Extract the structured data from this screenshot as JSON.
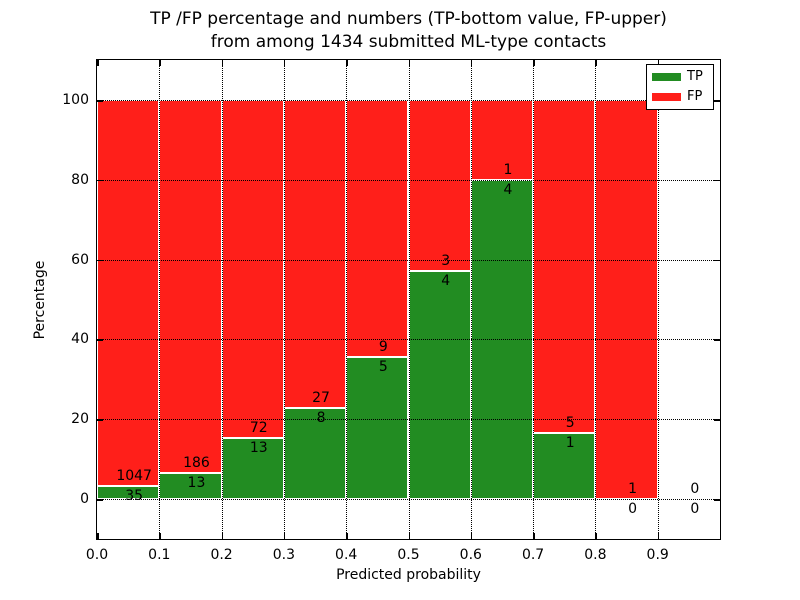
{
  "figure": {
    "title_line1": "TP /FP percentage and numbers (TP-bottom value, FP-upper)",
    "title_line2": "from among 1434 submitted ML-type contacts",
    "total_contacts": 1434
  },
  "chart_data": {
    "type": "bar",
    "stacked": true,
    "normalized_to_percent": true,
    "title": "TP /FP percentage and numbers (TP-bottom value, FP-upper) from among 1434 submitted ML-type contacts",
    "xlabel": "Predicted probability",
    "ylabel": "Percentage",
    "xlim": [
      0.0,
      1.0
    ],
    "ylim": [
      -10,
      110
    ],
    "grid": true,
    "x_ticks": [
      0.0,
      0.1,
      0.2,
      0.3,
      0.4,
      0.5,
      0.6,
      0.7,
      0.8,
      0.9
    ],
    "x_tick_labels": [
      "0.0",
      "0.1",
      "0.2",
      "0.3",
      "0.4",
      "0.5",
      "0.6",
      "0.7",
      "0.8",
      "0.9"
    ],
    "y_ticks": [
      0,
      20,
      40,
      60,
      80,
      100
    ],
    "y_tick_labels": [
      "0",
      "20",
      "40",
      "60",
      "80",
      "100"
    ],
    "bin_width": 0.1,
    "bins": [
      {
        "range": "0.0-0.1",
        "tp": 35,
        "fp": 1047
      },
      {
        "range": "0.1-0.2",
        "tp": 13,
        "fp": 186
      },
      {
        "range": "0.2-0.3",
        "tp": 13,
        "fp": 72
      },
      {
        "range": "0.3-0.4",
        "tp": 8,
        "fp": 27
      },
      {
        "range": "0.4-0.5",
        "tp": 5,
        "fp": 9
      },
      {
        "range": "0.5-0.6",
        "tp": 4,
        "fp": 3
      },
      {
        "range": "0.6-0.7",
        "tp": 4,
        "fp": 1
      },
      {
        "range": "0.7-0.8",
        "tp": 1,
        "fp": 5
      },
      {
        "range": "0.8-0.9",
        "tp": 0,
        "fp": 1
      },
      {
        "range": "0.9-1.0",
        "tp": 0,
        "fp": 0
      }
    ],
    "series": [
      {
        "name": "TP",
        "color": "#228c22",
        "counts": [
          35,
          13,
          13,
          8,
          5,
          4,
          4,
          1,
          0,
          0
        ]
      },
      {
        "name": "FP",
        "color": "#ff1f1a",
        "counts": [
          1047,
          186,
          72,
          27,
          9,
          3,
          1,
          5,
          1,
          0
        ]
      }
    ],
    "legend": {
      "position": "upper right",
      "entries": [
        "TP",
        "FP"
      ]
    },
    "label_rule": "TP count printed below top of green segment, FP count printed above it",
    "edge_color": "#ffffff",
    "grid_color": "#000000",
    "axis_color": "#000000",
    "background_color": "#ffffff"
  }
}
